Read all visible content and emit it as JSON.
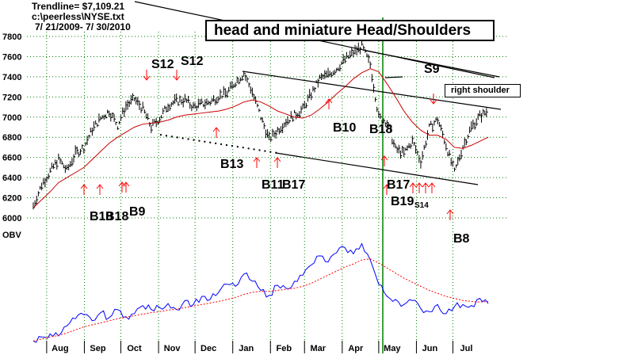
{
  "header": {
    "trendline": "Trendline= $7,109.21",
    "file": "c:\\peerless\\NYSE.txt",
    "range": "7/ 21/2009- 7/ 30/2010"
  },
  "annotations": {
    "title": "head and miniature Head/Shoulders",
    "right_shoulder": "right shoulder"
  },
  "obv_label": "OBV",
  "colors": {
    "price_bars": "#000000",
    "moving_average": "#cc0000",
    "obv_line": "#0000ff",
    "obv_average": "#ff0000",
    "signal_arrows": "#ff0000",
    "vertical_marker": "#008000",
    "grid": "#008000"
  },
  "chart_data": [
    {
      "type": "line",
      "title": "",
      "x": [
        "2009-07-21",
        "2009-07-28",
        "2009-08-04",
        "2009-08-11",
        "2009-08-18",
        "2009-08-25",
        "2009-09-01",
        "2009-09-08",
        "2009-09-15",
        "2009-09-22",
        "2009-09-29",
        "2009-10-06",
        "2009-10-13",
        "2009-10-20",
        "2009-10-27",
        "2009-11-03",
        "2009-11-10",
        "2009-11-17",
        "2009-11-24",
        "2009-12-01",
        "2009-12-08",
        "2009-12-15",
        "2009-12-22",
        "2009-12-29",
        "2010-01-05",
        "2010-01-12",
        "2010-01-19",
        "2010-01-26",
        "2010-02-02",
        "2010-02-09",
        "2010-02-16",
        "2010-02-23",
        "2010-03-02",
        "2010-03-09",
        "2010-03-16",
        "2010-03-23",
        "2010-03-30",
        "2010-04-06",
        "2010-04-13",
        "2010-04-20",
        "2010-04-27",
        "2010-05-04",
        "2010-05-11",
        "2010-05-18",
        "2010-05-25",
        "2010-06-01",
        "2010-06-08",
        "2010-06-15",
        "2010-06-22",
        "2010-06-29",
        "2010-07-06",
        "2010-07-13",
        "2010-07-20",
        "2010-07-27",
        "2010-07-30"
      ],
      "series": [
        {
          "values": [
            6120,
            6330,
            6460,
            6580,
            6470,
            6640,
            6700,
            6880,
            6990,
            7060,
            6920,
            7110,
            7180,
            7080,
            6900,
            6990,
            7120,
            7160,
            7170,
            7100,
            7130,
            7150,
            7210,
            7240,
            7350,
            7430,
            7250,
            7000,
            6780,
            6870,
            6960,
            7020,
            7080,
            7230,
            7380,
            7420,
            7480,
            7570,
            7640,
            7700,
            7520,
            7000,
            6950,
            6680,
            6640,
            6760,
            6560,
            6890,
            6980,
            6720,
            6450,
            6710,
            6900,
            7010,
            7060
          ]
        },
        {
          "values": [
            6100,
            6180,
            6260,
            6350,
            6400,
            6450,
            6500,
            6580,
            6660,
            6740,
            6800,
            6850,
            6900,
            6930,
            6940,
            6950,
            6970,
            7000,
            7020,
            7030,
            7040,
            7050,
            7060,
            7080,
            7110,
            7150,
            7170,
            7150,
            7110,
            7060,
            7030,
            7000,
            6990,
            7020,
            7080,
            7150,
            7230,
            7300,
            7380,
            7440,
            7480,
            7450,
            7330,
            7200,
            7060,
            6950,
            6870,
            6820,
            6820,
            6780,
            6700,
            6690,
            6720,
            6760,
            6800
          ]
        }
      ],
      "ylim": [
        6000,
        7850
      ],
      "yticks": [
        6000,
        6200,
        6400,
        6600,
        6800,
        7000,
        7200,
        7400,
        7600,
        7800
      ],
      "xticks": [
        "Aug",
        "Sep",
        "Oct",
        "Nov",
        "Dec",
        "Jan",
        "Feb",
        "Mar",
        "Apr",
        "May",
        "Jun",
        "Jul"
      ],
      "grid": true,
      "annotations": [
        "S12",
        "S12",
        "S9",
        "B10",
        "B18",
        "B13",
        "B11",
        "B17",
        "B17",
        "B19",
        "S14",
        "B8",
        "B18",
        "B9"
      ]
    },
    {
      "type": "line",
      "title": "",
      "x": [
        "2009-07-21",
        "2009-07-28",
        "2009-08-04",
        "2009-08-11",
        "2009-08-18",
        "2009-08-25",
        "2009-09-01",
        "2009-09-08",
        "2009-09-15",
        "2009-09-22",
        "2009-09-29",
        "2009-10-06",
        "2009-10-13",
        "2009-10-20",
        "2009-10-27",
        "2009-11-03",
        "2009-11-10",
        "2009-11-17",
        "2009-11-24",
        "2009-12-01",
        "2009-12-08",
        "2009-12-15",
        "2009-12-22",
        "2009-12-29",
        "2010-01-05",
        "2010-01-12",
        "2010-01-19",
        "2010-01-26",
        "2010-02-02",
        "2010-02-09",
        "2010-02-16",
        "2010-02-23",
        "2010-03-02",
        "2010-03-09",
        "2010-03-16",
        "2010-03-23",
        "2010-03-30",
        "2010-04-06",
        "2010-04-13",
        "2010-04-20",
        "2010-04-27",
        "2010-05-04",
        "2010-05-11",
        "2010-05-18",
        "2010-05-25",
        "2010-06-01",
        "2010-06-08",
        "2010-06-15",
        "2010-06-22",
        "2010-06-29",
        "2010-07-06",
        "2010-07-13",
        "2010-07-20",
        "2010-07-27",
        "2010-07-30"
      ],
      "series": [
        {
          "values": [
            0,
            8,
            14,
            10,
            30,
            44,
            52,
            40,
            56,
            46,
            62,
            48,
            54,
            70,
            62,
            66,
            74,
            62,
            80,
            72,
            88,
            82,
            96,
            112,
            108,
            132,
            118,
            100,
            90,
            110,
            104,
            118,
            130,
            150,
            168,
            156,
            174,
            184,
            172,
            192,
            160,
            112,
            88,
            82,
            72,
            80,
            64,
            58,
            72,
            54,
            68,
            72,
            70,
            84,
            74
          ]
        },
        {
          "values": [
            0,
            4,
            8,
            11,
            16,
            22,
            28,
            32,
            36,
            40,
            44,
            47,
            50,
            53,
            56,
            58,
            61,
            63,
            66,
            69,
            72,
            75,
            78,
            82,
            86,
            92,
            96,
            98,
            98,
            100,
            102,
            104,
            108,
            114,
            122,
            130,
            138,
            146,
            152,
            160,
            162,
            154,
            144,
            134,
            124,
            116,
            108,
            100,
            94,
            88,
            84,
            80,
            78,
            77,
            78
          ]
        }
      ],
      "ylim": [
        -15,
        210
      ],
      "grid": false
    }
  ]
}
